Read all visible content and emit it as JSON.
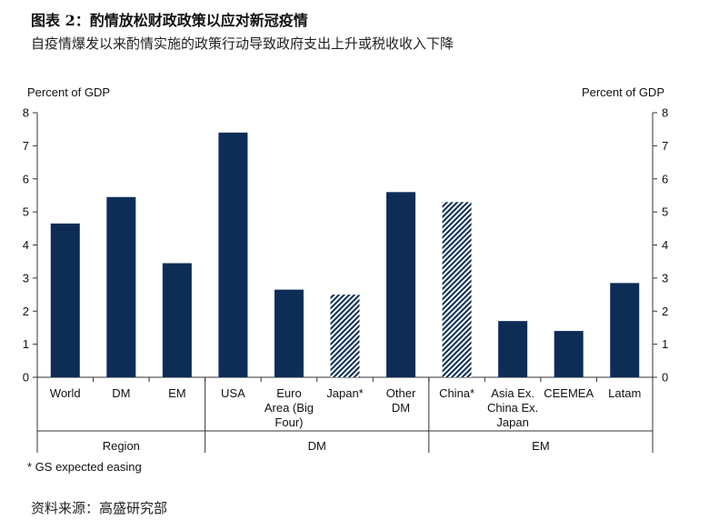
{
  "header": {
    "title": "图表 2：酌情放松财政政策以应对新冠疫情",
    "subtitle": "自疫情爆发以来酌情实施的政策行动导致政府支出上升或税收收入下降"
  },
  "footnote": "* GS expected easing",
  "source": "资料来源：高盛研究部",
  "colors": {
    "bar": "#0d2d57",
    "axis": "#333333",
    "hatch_bg": "#ffffff"
  },
  "chart_data": {
    "type": "bar",
    "ylabel_left": "Percent of GDP",
    "ylabel_right": "Percent of GDP",
    "ylim": [
      0,
      8
    ],
    "yticks": [
      0,
      1,
      2,
      3,
      4,
      5,
      6,
      7,
      8
    ],
    "grid": false,
    "categories": [
      {
        "label": "World",
        "value": 4.65,
        "hatched": false
      },
      {
        "label": "DM",
        "value": 5.45,
        "hatched": false
      },
      {
        "label": "EM",
        "value": 3.45,
        "hatched": false
      },
      {
        "label": "USA",
        "value": 7.4,
        "hatched": false
      },
      {
        "label": "Euro\nArea (Big\nFour)",
        "value": 2.65,
        "hatched": false
      },
      {
        "label": "Japan*",
        "value": 2.5,
        "hatched": true
      },
      {
        "label": "Other\nDM",
        "value": 5.6,
        "hatched": false
      },
      {
        "label": "China*",
        "value": 5.3,
        "hatched": true
      },
      {
        "label": "Asia Ex.\nChina Ex.\nJapan",
        "value": 1.7,
        "hatched": false
      },
      {
        "label": "CEEMEA",
        "value": 1.4,
        "hatched": false
      },
      {
        "label": "Latam",
        "value": 2.85,
        "hatched": false
      }
    ],
    "groups": [
      {
        "label": "Region",
        "start": 0,
        "end": 2
      },
      {
        "label": "DM",
        "start": 3,
        "end": 6
      },
      {
        "label": "EM",
        "start": 7,
        "end": 10
      }
    ]
  }
}
